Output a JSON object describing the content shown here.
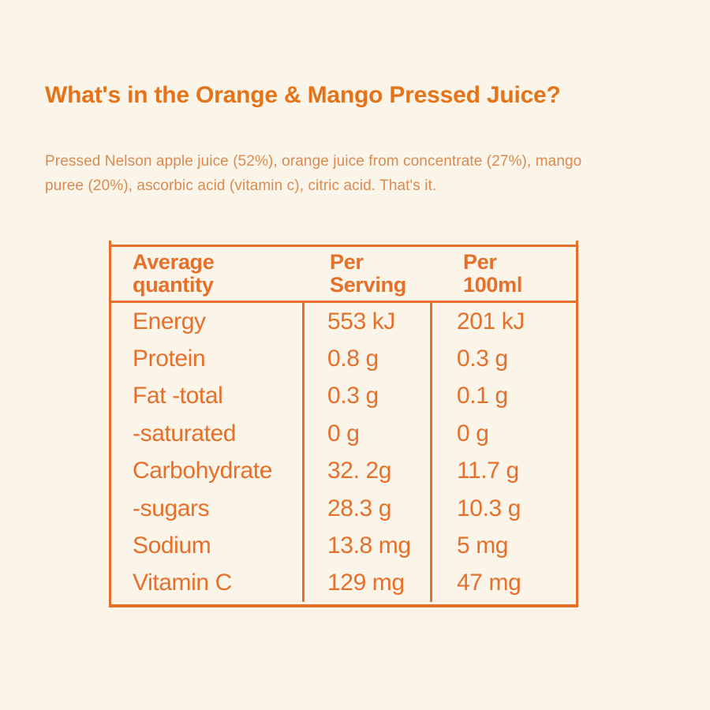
{
  "colors": {
    "background": "#FBF5E9",
    "heading": "#E5731A",
    "body_text": "#D98A52",
    "table": "#E4702B"
  },
  "heading": {
    "text": "What's in the Orange & Mango Pressed Juice?"
  },
  "ingredients": {
    "text": "Pressed Nelson apple juice (52%), orange juice from concentrate (27%), mango puree (20%), ascorbic acid (vitamin c), citric acid. That's it."
  },
  "nutrition_table": {
    "headers": {
      "quantity": "Average\nquantity",
      "per_serving": "Per\nServing",
      "per_100ml": "Per\n100ml"
    },
    "rows": [
      {
        "label": "Energy",
        "per_serving": "553 kJ",
        "per_100ml": "201 kJ"
      },
      {
        "label": "Protein",
        "per_serving": "0.8 g",
        "per_100ml": "0.3 g"
      },
      {
        "label": "Fat -total",
        "per_serving": "0.3 g",
        "per_100ml": "0.1 g"
      },
      {
        "label": "-saturated",
        "per_serving": "0 g",
        "per_100ml": "0 g"
      },
      {
        "label": "Carbohydrate",
        "per_serving": "32. 2g",
        "per_100ml": "11.7 g"
      },
      {
        "label": "-sugars",
        "per_serving": "28.3 g",
        "per_100ml": "10.3 g"
      },
      {
        "label": "Sodium",
        "per_serving": "13.8 mg",
        "per_100ml": "5 mg"
      },
      {
        "label": "Vitamin C",
        "per_serving": "129 mg",
        "per_100ml": "47 mg"
      }
    ]
  }
}
